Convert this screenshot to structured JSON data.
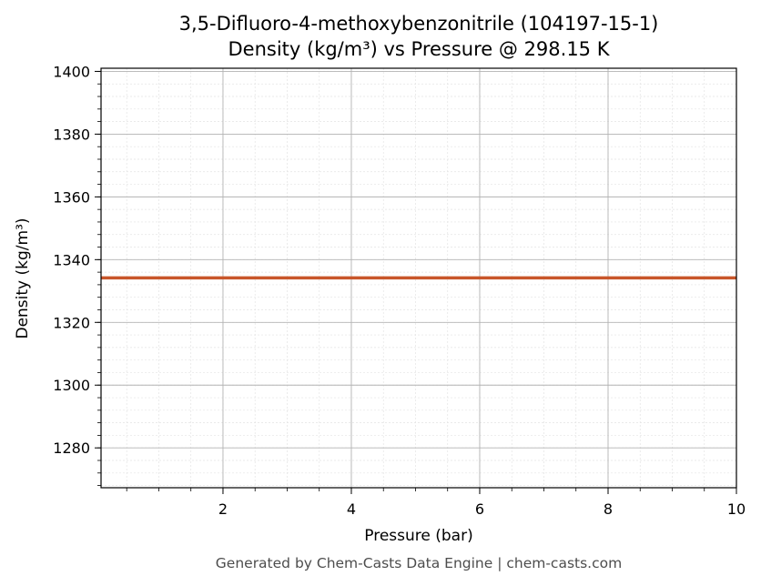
{
  "chart_data": {
    "type": "line",
    "title_line1": "3,5-Difluoro-4-methoxybenzonitrile (104197-15-1)",
    "title_line2": "Density (kg/m³) vs Pressure @ 298.15 K",
    "xlabel": "Pressure (bar)",
    "ylabel": "Density (kg/m³)",
    "xlim": [
      0.1,
      10
    ],
    "ylim": [
      1267.3,
      1401
    ],
    "x_ticks": [
      2,
      4,
      6,
      8,
      10
    ],
    "y_ticks": [
      1280,
      1300,
      1320,
      1340,
      1360,
      1380,
      1400
    ],
    "x_minor_step": 0.5,
    "y_minor_step": 4,
    "grid": true,
    "series": [
      {
        "color": "#c8562a",
        "x": [
          0.1,
          1,
          2,
          3,
          4,
          5,
          6,
          7,
          8,
          9,
          10
        ],
        "y": [
          1334.2,
          1334.2,
          1334.2,
          1334.2,
          1334.2,
          1334.2,
          1334.2,
          1334.2,
          1334.2,
          1334.2,
          1334.2
        ]
      }
    ]
  },
  "footer": "Generated by Chem-Casts Data Engine | chem-casts.com"
}
